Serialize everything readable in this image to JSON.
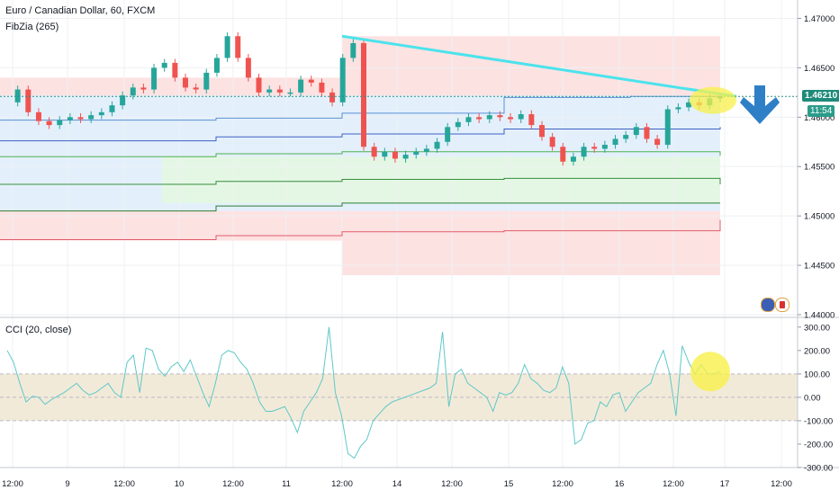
{
  "header": {
    "title": "Euro / Canadian Dollar, 60, FXCM",
    "indicator": "FibZia (265)",
    "cci_label": "CCI (20, close)"
  },
  "price_badge": {
    "price": "1.46210",
    "countdown": "11:54"
  },
  "colors": {
    "up": "#26a69a",
    "down": "#ef5350",
    "trendline": "#4be3ec",
    "zone_red": "#fde2e2",
    "zone_blue": "#e3f0fc",
    "zone_green": "#e4f7e4",
    "highlight": "#f7f04a",
    "arrow": "#2f7fc7",
    "cci_line": "#5ec8c8",
    "cci_band": "#f2ead9"
  },
  "chart_data": [
    {
      "type": "candlestick",
      "title": "Euro / Canadian Dollar, 60, FXCM",
      "ylim": [
        1.44,
        1.4715
      ],
      "y_ticks": [
        "1.47000",
        "1.46500",
        "1.46000",
        "1.45500",
        "1.45000",
        "1.44500",
        "1.44000"
      ],
      "x_ticks": [
        "12:00",
        "9",
        "12:00",
        "10",
        "12:00",
        "11",
        "12:00",
        "14",
        "12:00",
        "15",
        "12:00",
        "16",
        "12:00",
        "17",
        "12:00"
      ],
      "ohlc_path": [
        1.4615,
        1.4628,
        1.4605,
        1.4596,
        1.4592,
        1.4597,
        1.46,
        1.4598,
        1.4602,
        1.4605,
        1.4612,
        1.4622,
        1.463,
        1.4628,
        1.465,
        1.4655,
        1.464,
        1.463,
        1.4628,
        1.4645,
        1.466,
        1.4682,
        1.466,
        1.464,
        1.4625,
        1.4628,
        1.4625,
        1.4625,
        1.4638,
        1.4635,
        1.4625,
        1.4615,
        1.466,
        1.4675,
        1.457,
        1.456,
        1.4565,
        1.4558,
        1.4562,
        1.4565,
        1.4568,
        1.4575,
        1.459,
        1.4595,
        1.46,
        1.4598,
        1.4602,
        1.46,
        1.4598,
        1.4603,
        1.4592,
        1.458,
        1.457,
        1.4555,
        1.456,
        1.457,
        1.4568,
        1.4572,
        1.4578,
        1.4582,
        1.459,
        1.4578,
        1.4572,
        1.4608,
        1.461,
        1.4615,
        1.4612,
        1.4619,
        1.4621
      ],
      "trendline": {
        "from_price": 1.4682,
        "to_price": 1.4621
      },
      "fib_lines": [
        {
          "name": "upper-blue",
          "values": [
            1.4597,
            1.4597,
            1.4599,
            1.4604,
            1.462,
            1.4621,
            1.4621,
            1.4621
          ]
        },
        {
          "name": "mid-blue",
          "values": [
            1.4576,
            1.4576,
            1.458,
            1.4583,
            1.4588,
            1.4588,
            1.4588,
            1.459
          ]
        },
        {
          "name": "green-1",
          "values": [
            1.456,
            1.456,
            1.4563,
            1.4565,
            1.4565,
            1.4565,
            1.4565,
            1.4561
          ]
        },
        {
          "name": "green-2",
          "values": [
            1.4532,
            1.4532,
            1.4535,
            1.4537,
            1.4538,
            1.4538,
            1.4538,
            1.4532
          ]
        },
        {
          "name": "green-3",
          "values": [
            1.4505,
            1.4505,
            1.451,
            1.4513,
            1.4513,
            1.4513,
            1.4513,
            1.4513
          ]
        },
        {
          "name": "red-low",
          "values": [
            1.4476,
            1.4476,
            1.448,
            1.4484,
            1.4485,
            1.4485,
            1.4485,
            1.4496
          ]
        }
      ]
    },
    {
      "type": "line",
      "title": "CCI (20, close)",
      "ylim": [
        -300,
        330
      ],
      "y_ticks": [
        "300.00",
        "200.00",
        "100.00",
        "0.00",
        "-100.00",
        "-200.00",
        "-300.00"
      ],
      "band": [
        -100,
        100
      ],
      "values": [
        200,
        150,
        60,
        -20,
        5,
        0,
        -30,
        -10,
        5,
        20,
        40,
        60,
        30,
        10,
        20,
        40,
        60,
        20,
        0,
        150,
        180,
        20,
        210,
        200,
        120,
        90,
        130,
        150,
        110,
        160,
        90,
        20,
        -40,
        60,
        180,
        200,
        190,
        150,
        120,
        60,
        -20,
        -60,
        -60,
        -50,
        -40,
        -90,
        -150,
        -60,
        -20,
        20,
        80,
        300,
        20,
        -80,
        -240,
        -260,
        -210,
        -180,
        -100,
        -70,
        -40,
        -20,
        -10,
        0,
        10,
        20,
        30,
        40,
        60,
        280,
        -40,
        100,
        120,
        60,
        40,
        20,
        0,
        -60,
        20,
        10,
        20,
        60,
        140,
        80,
        60,
        30,
        20,
        40,
        130,
        60,
        -200,
        -180,
        -110,
        -100,
        -20,
        -40,
        10,
        20,
        -60,
        -20,
        20,
        40,
        60,
        140,
        200,
        100,
        -80,
        220,
        150,
        100,
        140,
        100,
        100,
        110
      ]
    }
  ]
}
